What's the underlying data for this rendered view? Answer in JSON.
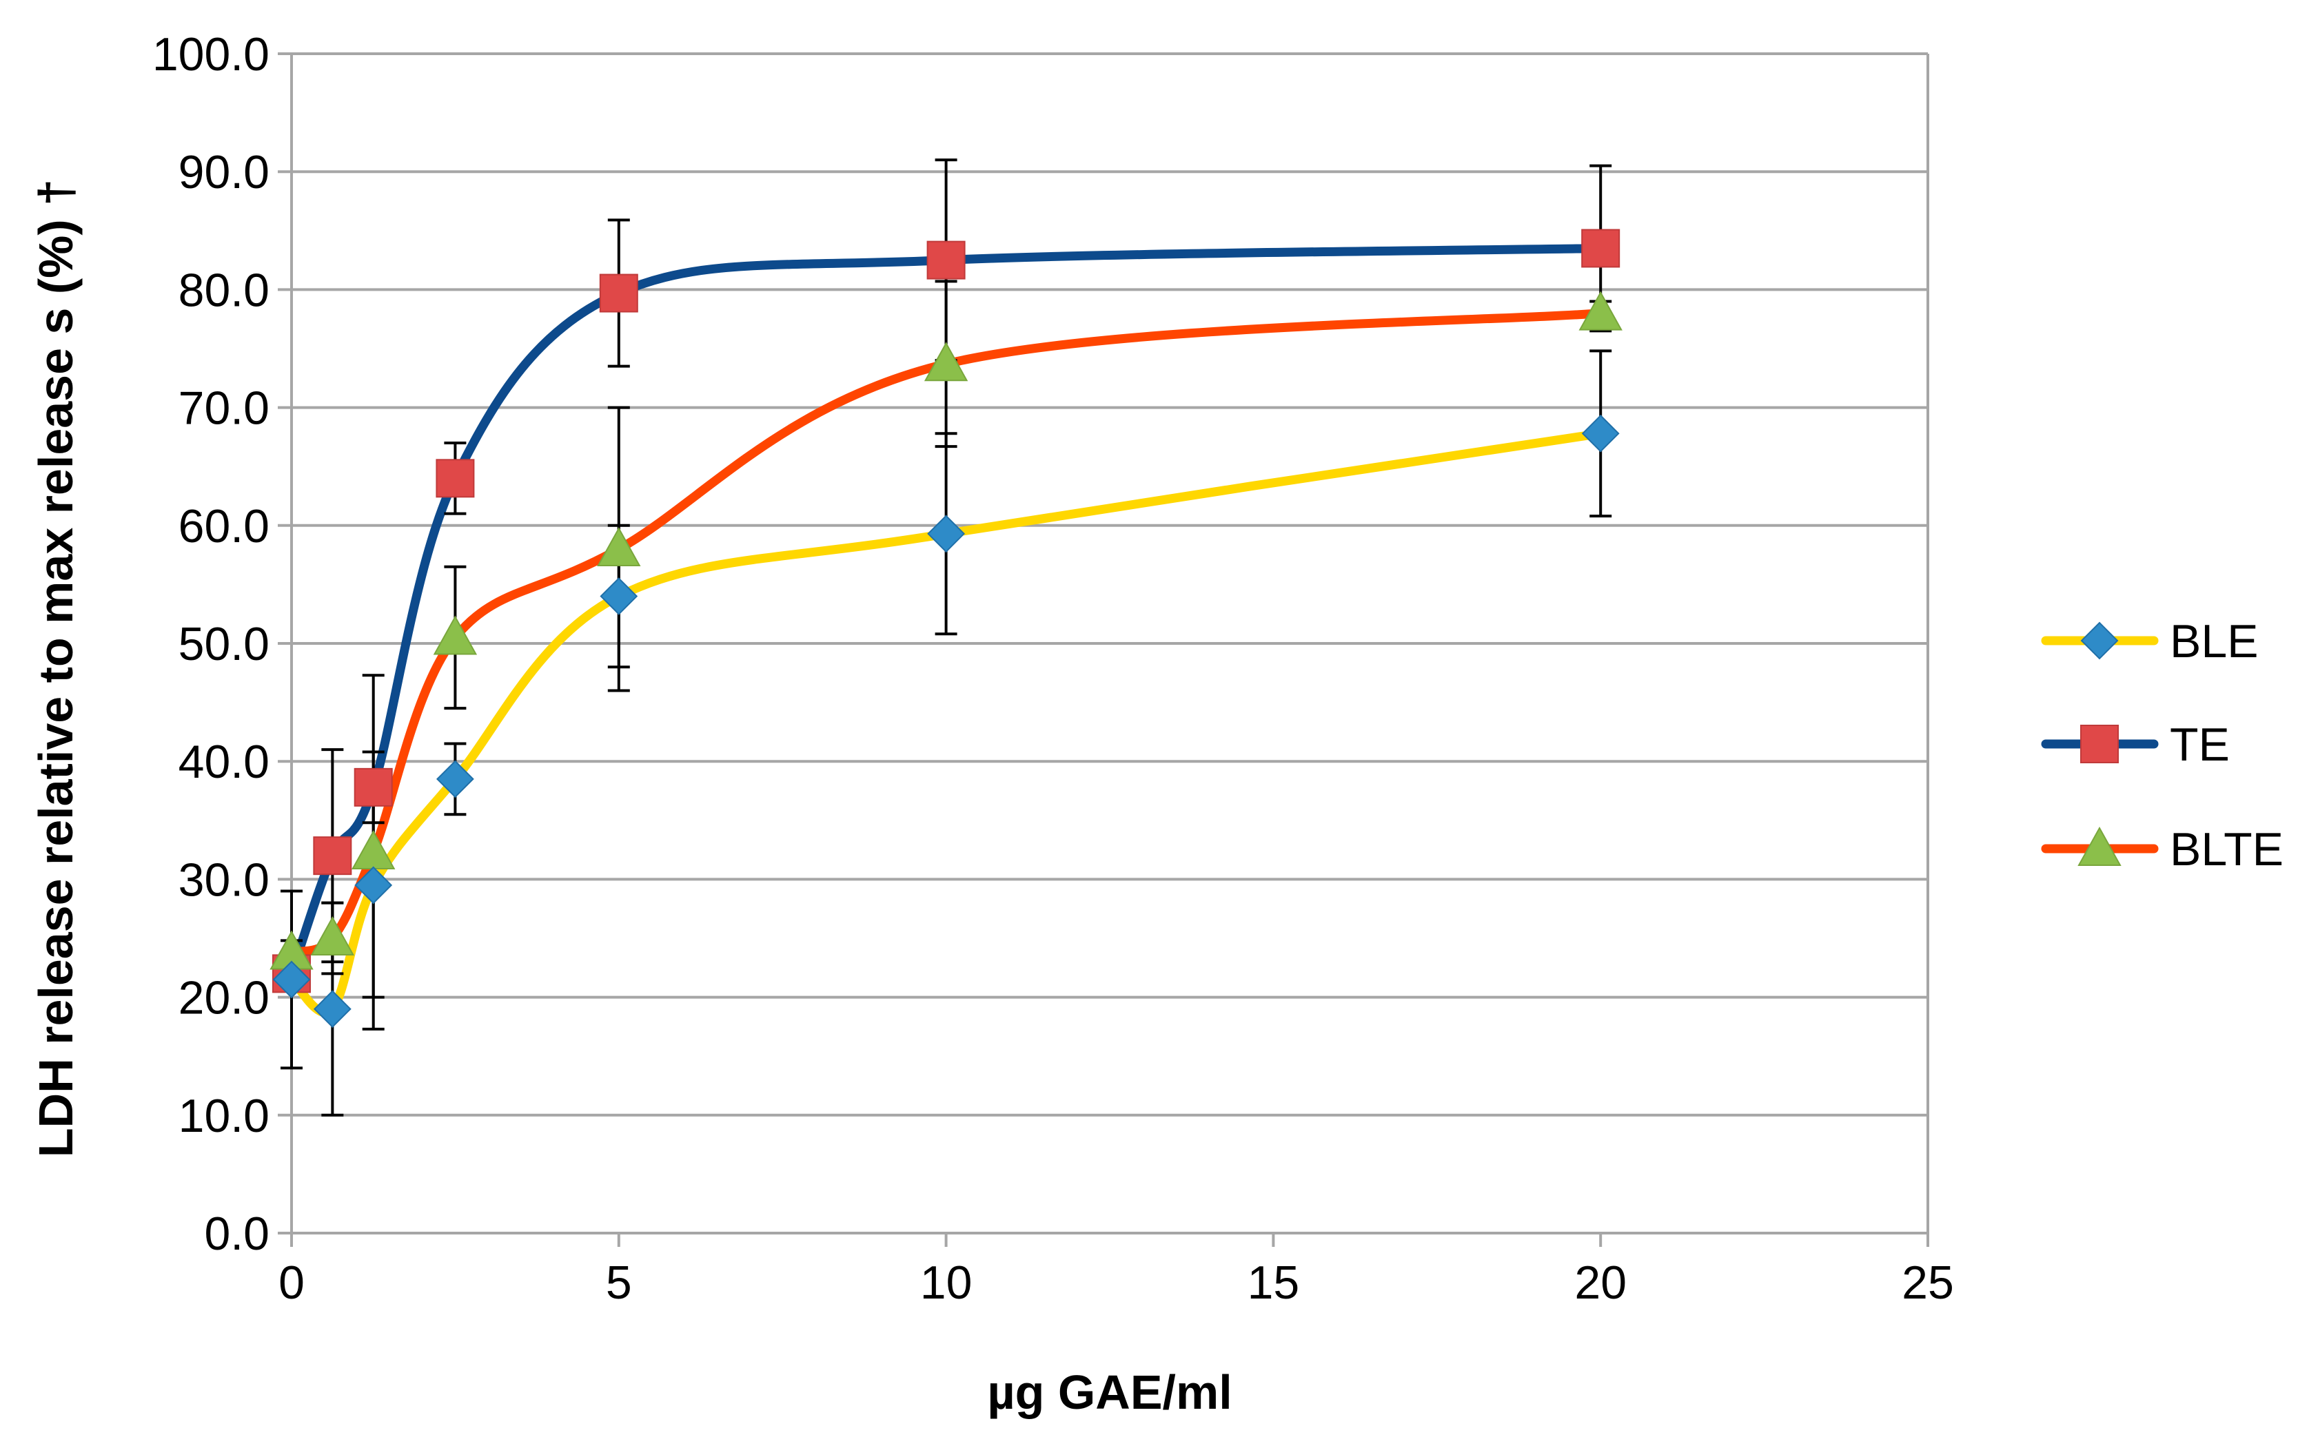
{
  "chart_data": {
    "type": "scatter",
    "smoothed_lines": true,
    "xlabel": "µg GAE/ml",
    "ylabel": "LDH release relative to max release s (%) †",
    "xlim": [
      0,
      25
    ],
    "ylim": [
      0,
      100
    ],
    "x_ticks": [
      "0",
      "5",
      "10",
      "15",
      "20",
      "25"
    ],
    "y_ticks": [
      "0.0",
      "10.0",
      "20.0",
      "30.0",
      "40.0",
      "50.0",
      "60.0",
      "70.0",
      "80.0",
      "90.0",
      "100.0"
    ],
    "grid": "horizontal",
    "legend_position": "right",
    "series": [
      {
        "name": "BLE",
        "line_color": "#FFD700",
        "marker": "diamond",
        "marker_color": "#2E8BC8",
        "x": [
          0,
          0.625,
          1.25,
          2.5,
          5,
          10,
          20
        ],
        "y": [
          21.5,
          19.0,
          29.5,
          38.5,
          54.0,
          59.3,
          67.8
        ],
        "error": [
          7.5,
          9.0,
          9.5,
          3.0,
          6.0,
          8.5,
          7.0
        ]
      },
      {
        "name": "TE",
        "line_color": "#0D4A8C",
        "marker": "square",
        "marker_color": "#E04848",
        "x": [
          0,
          0.625,
          1.25,
          2.5,
          5,
          10,
          20
        ],
        "y": [
          22.0,
          32.0,
          37.8,
          64.0,
          79.7,
          82.5,
          83.5
        ],
        "error": [
          1.0,
          9.0,
          3.0,
          3.0,
          6.2,
          8.5,
          7.0
        ]
      },
      {
        "name": "BLTE",
        "line_color": "#FF4500",
        "marker": "triangle",
        "marker_color": "#8BBF4A",
        "x": [
          0,
          0.625,
          1.25,
          2.5,
          5,
          10,
          20
        ],
        "y": [
          23.8,
          25.0,
          32.3,
          50.5,
          58.0,
          73.7,
          78.0
        ],
        "error": [
          1.0,
          3.0,
          15.0,
          6.0,
          12.0,
          7.0,
          1.0
        ]
      }
    ]
  }
}
